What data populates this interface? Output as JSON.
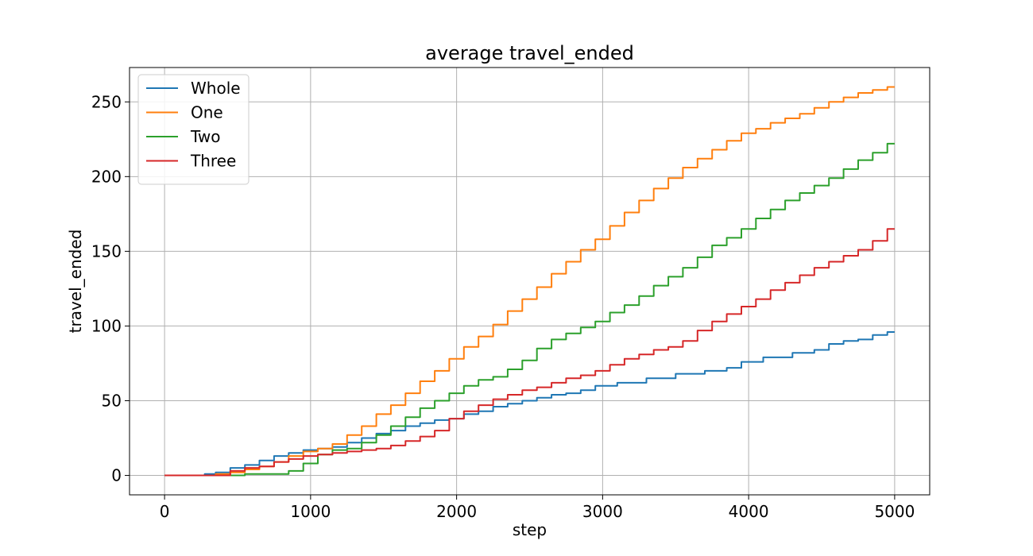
{
  "chart_data": {
    "type": "line",
    "title": "average travel_ended",
    "xlabel": "step",
    "ylabel": "travel_ended",
    "xlim": [
      -240,
      5240
    ],
    "ylim": [
      -13,
      273
    ],
    "xticks": [
      0,
      1000,
      2000,
      3000,
      4000,
      5000
    ],
    "yticks": [
      0,
      50,
      100,
      150,
      200,
      250
    ],
    "grid": true,
    "legend_position": "top-left",
    "series": [
      {
        "name": "Whole",
        "color": "#1f77b4",
        "x": [
          0,
          250,
          300,
          400,
          500,
          600,
          700,
          800,
          900,
          1000,
          1100,
          1200,
          1300,
          1400,
          1500,
          1600,
          1700,
          1800,
          1900,
          2000,
          2100,
          2200,
          2300,
          2400,
          2500,
          2600,
          2700,
          2800,
          2900,
          3000,
          3200,
          3400,
          3600,
          3800,
          3900,
          4000,
          4200,
          4400,
          4500,
          4600,
          4700,
          4800,
          4900,
          5000
        ],
        "y": [
          0,
          0,
          1,
          2,
          5,
          7,
          10,
          13,
          15,
          17,
          18,
          19,
          22,
          25,
          28,
          30,
          33,
          35,
          37,
          38,
          41,
          43,
          46,
          48,
          50,
          52,
          54,
          55,
          57,
          60,
          62,
          65,
          68,
          70,
          72,
          76,
          79,
          82,
          84,
          88,
          90,
          91,
          94,
          96
        ]
      },
      {
        "name": "One",
        "color": "#ff7f0e",
        "x": [
          0,
          300,
          400,
          500,
          600,
          700,
          800,
          900,
          1000,
          1100,
          1200,
          1300,
          1400,
          1500,
          1600,
          1700,
          1800,
          1900,
          2000,
          2100,
          2200,
          2300,
          2400,
          2500,
          2600,
          2700,
          2800,
          2900,
          3000,
          3100,
          3200,
          3300,
          3400,
          3500,
          3600,
          3700,
          3800,
          3900,
          4000,
          4100,
          4200,
          4300,
          4400,
          4500,
          4600,
          4700,
          4800,
          4900,
          5000
        ],
        "y": [
          0,
          0,
          1,
          2,
          4,
          6,
          9,
          13,
          16,
          18,
          21,
          27,
          33,
          41,
          47,
          55,
          63,
          70,
          78,
          86,
          93,
          101,
          110,
          118,
          126,
          135,
          143,
          151,
          158,
          167,
          176,
          184,
          192,
          199,
          206,
          212,
          218,
          224,
          229,
          232,
          236,
          239,
          242,
          246,
          250,
          253,
          256,
          258,
          260
        ]
      },
      {
        "name": "Two",
        "color": "#2ca02c",
        "x": [
          0,
          500,
          600,
          700,
          800,
          900,
          1000,
          1100,
          1200,
          1300,
          1400,
          1500,
          1600,
          1700,
          1800,
          1900,
          2000,
          2100,
          2200,
          2300,
          2400,
          2500,
          2600,
          2700,
          2800,
          2900,
          3000,
          3100,
          3200,
          3300,
          3400,
          3500,
          3600,
          3700,
          3800,
          3900,
          4000,
          4100,
          4200,
          4300,
          4400,
          4500,
          4600,
          4700,
          4800,
          4900,
          5000
        ],
        "y": [
          0,
          0,
          1,
          1,
          1,
          3,
          8,
          14,
          17,
          18,
          22,
          27,
          33,
          39,
          45,
          50,
          55,
          60,
          64,
          66,
          71,
          77,
          85,
          91,
          95,
          99,
          103,
          109,
          114,
          120,
          127,
          133,
          139,
          146,
          154,
          159,
          165,
          172,
          178,
          184,
          189,
          194,
          199,
          205,
          211,
          216,
          222
        ]
      },
      {
        "name": "Three",
        "color": "#d62728",
        "x": [
          0,
          400,
          500,
          600,
          700,
          800,
          900,
          1000,
          1100,
          1200,
          1300,
          1400,
          1500,
          1600,
          1700,
          1800,
          1900,
          2000,
          2100,
          2200,
          2300,
          2400,
          2500,
          2600,
          2700,
          2800,
          2900,
          3000,
          3100,
          3200,
          3300,
          3400,
          3500,
          3600,
          3700,
          3800,
          3900,
          4000,
          4100,
          4200,
          4300,
          4400,
          4500,
          4600,
          4700,
          4800,
          4900,
          5000
        ],
        "y": [
          0,
          0,
          3,
          5,
          6,
          9,
          11,
          13,
          14,
          15,
          16,
          17,
          18,
          20,
          23,
          26,
          30,
          38,
          43,
          47,
          51,
          54,
          57,
          59,
          62,
          65,
          67,
          70,
          74,
          78,
          81,
          84,
          86,
          90,
          97,
          103,
          108,
          113,
          118,
          124,
          129,
          134,
          139,
          143,
          147,
          151,
          157,
          165
        ]
      }
    ]
  }
}
